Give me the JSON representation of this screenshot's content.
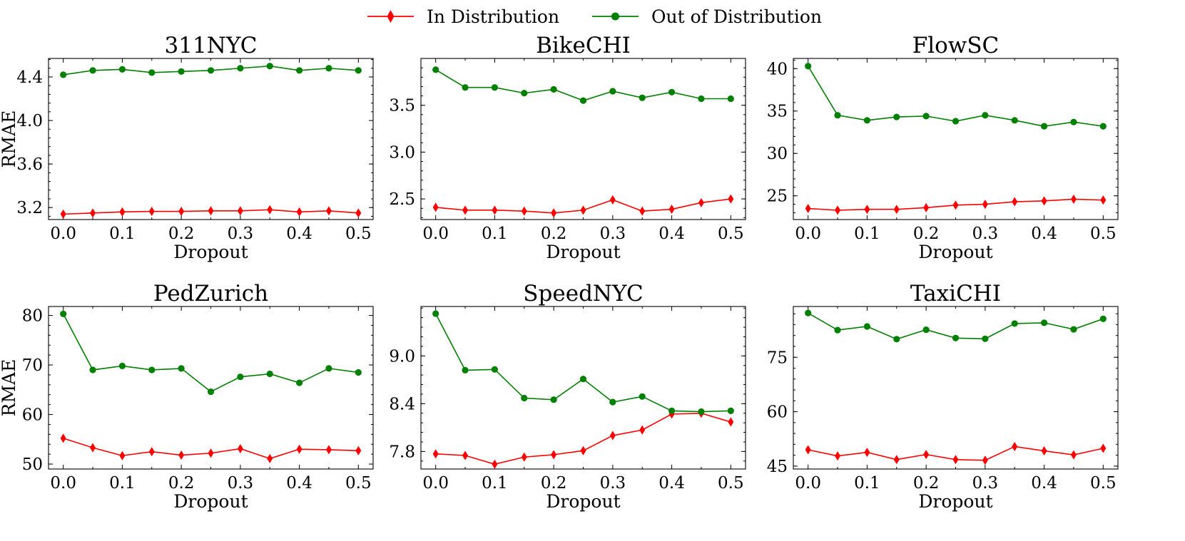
{
  "legend": {
    "in_label": "In Distribution",
    "out_label": "Out of Distribution",
    "in_color": "#ff0000",
    "out_color": "#008000"
  },
  "chart_data": [
    {
      "type": "line",
      "title": "311NYC",
      "xlabel": "Dropout",
      "ylabel": "RMAE",
      "x": [
        0.0,
        0.05,
        0.1,
        0.15,
        0.2,
        0.25,
        0.3,
        0.35,
        0.4,
        0.45,
        0.5
      ],
      "xticks": [
        "0.0",
        "0.1",
        "0.2",
        "0.3",
        "0.4",
        "0.5"
      ],
      "yticks": [
        "3.2",
        "3.6",
        "4.0",
        "4.4"
      ],
      "ylim": [
        3.09,
        4.57
      ],
      "series": [
        {
          "name": "In Distribution",
          "values": [
            3.14,
            3.15,
            3.16,
            3.165,
            3.165,
            3.17,
            3.17,
            3.18,
            3.16,
            3.17,
            3.15
          ]
        },
        {
          "name": "Out of Distribution",
          "values": [
            4.42,
            4.46,
            4.47,
            4.44,
            4.45,
            4.46,
            4.48,
            4.5,
            4.46,
            4.48,
            4.46
          ]
        }
      ]
    },
    {
      "type": "line",
      "title": "BikeCHI",
      "xlabel": "Dropout",
      "ylabel": "",
      "x": [
        0.0,
        0.05,
        0.1,
        0.15,
        0.2,
        0.25,
        0.3,
        0.35,
        0.4,
        0.45,
        0.5
      ],
      "xticks": [
        "0.0",
        "0.1",
        "0.2",
        "0.3",
        "0.4",
        "0.5"
      ],
      "yticks": [
        "2.5",
        "3.0",
        "3.5"
      ],
      "ylim": [
        2.28,
        4.0
      ],
      "series": [
        {
          "name": "In Distribution",
          "values": [
            2.41,
            2.38,
            2.38,
            2.37,
            2.35,
            2.38,
            2.49,
            2.37,
            2.39,
            2.46,
            2.5
          ]
        },
        {
          "name": "Out of Distribution",
          "values": [
            3.88,
            3.69,
            3.69,
            3.63,
            3.67,
            3.55,
            3.65,
            3.58,
            3.64,
            3.57,
            3.57
          ]
        }
      ]
    },
    {
      "type": "line",
      "title": "FlowSC",
      "xlabel": "Dropout",
      "ylabel": "",
      "x": [
        0.0,
        0.05,
        0.1,
        0.15,
        0.2,
        0.25,
        0.3,
        0.35,
        0.4,
        0.45,
        0.5
      ],
      "xticks": [
        "0.0",
        "0.1",
        "0.2",
        "0.3",
        "0.4",
        "0.5"
      ],
      "yticks": [
        "25",
        "30",
        "35",
        "40"
      ],
      "ylim": [
        22.2,
        41.2
      ],
      "series": [
        {
          "name": "In Distribution",
          "values": [
            23.5,
            23.3,
            23.4,
            23.4,
            23.6,
            23.9,
            24.0,
            24.3,
            24.4,
            24.6,
            24.5
          ]
        },
        {
          "name": "Out of Distribution",
          "values": [
            40.3,
            34.5,
            33.9,
            34.3,
            34.4,
            33.8,
            34.5,
            33.9,
            33.2,
            33.7,
            33.2
          ]
        }
      ]
    },
    {
      "type": "line",
      "title": "PedZurich",
      "xlabel": "Dropout",
      "ylabel": "RMAE",
      "x": [
        0.0,
        0.05,
        0.1,
        0.15,
        0.2,
        0.25,
        0.3,
        0.35,
        0.4,
        0.45,
        0.5
      ],
      "xticks": [
        "0.0",
        "0.1",
        "0.2",
        "0.3",
        "0.4",
        "0.5"
      ],
      "yticks": [
        "50",
        "60",
        "70",
        "80"
      ],
      "ylim": [
        49.0,
        81.8
      ],
      "series": [
        {
          "name": "In Distribution",
          "values": [
            55.2,
            53.3,
            51.7,
            52.5,
            51.8,
            52.2,
            53.1,
            51.1,
            53.0,
            52.9,
            52.7
          ]
        },
        {
          "name": "Out of Distribution",
          "values": [
            80.3,
            69.0,
            69.8,
            69.0,
            69.3,
            64.6,
            67.6,
            68.2,
            66.4,
            69.3,
            68.5
          ]
        }
      ]
    },
    {
      "type": "line",
      "title": "SpeedNYC",
      "xlabel": "Dropout",
      "ylabel": "",
      "x": [
        0.0,
        0.05,
        0.1,
        0.15,
        0.2,
        0.25,
        0.3,
        0.35,
        0.4,
        0.45,
        0.5
      ],
      "xticks": [
        "0.0",
        "0.1",
        "0.2",
        "0.3",
        "0.4",
        "0.5"
      ],
      "yticks": [
        "7.8",
        "8.4",
        "9.0"
      ],
      "ylim": [
        7.58,
        9.62
      ],
      "series": [
        {
          "name": "In Distribution",
          "values": [
            7.77,
            7.75,
            7.64,
            7.73,
            7.76,
            7.81,
            8.0,
            8.07,
            8.27,
            8.28,
            8.17
          ]
        },
        {
          "name": "Out of Distribution",
          "values": [
            9.53,
            8.82,
            8.83,
            8.47,
            8.45,
            8.71,
            8.42,
            8.49,
            8.31,
            8.3,
            8.31
          ]
        }
      ]
    },
    {
      "type": "line",
      "title": "TaxiCHI",
      "xlabel": "Dropout",
      "ylabel": "",
      "x": [
        0.0,
        0.05,
        0.1,
        0.15,
        0.2,
        0.25,
        0.3,
        0.35,
        0.4,
        0.45,
        0.5
      ],
      "xticks": [
        "0.0",
        "0.1",
        "0.2",
        "0.3",
        "0.4",
        "0.5"
      ],
      "yticks": [
        "45",
        "60",
        "75"
      ],
      "ylim": [
        44.2,
        89.0
      ],
      "series": [
        {
          "name": "In Distribution",
          "values": [
            49.5,
            47.8,
            48.8,
            46.8,
            48.2,
            46.8,
            46.6,
            50.4,
            49.2,
            48.1,
            49.9
          ]
        },
        {
          "name": "Out of Distribution",
          "values": [
            87.2,
            82.5,
            83.5,
            80.0,
            82.6,
            80.3,
            80.1,
            84.3,
            84.5,
            82.7,
            85.6
          ]
        }
      ]
    }
  ]
}
